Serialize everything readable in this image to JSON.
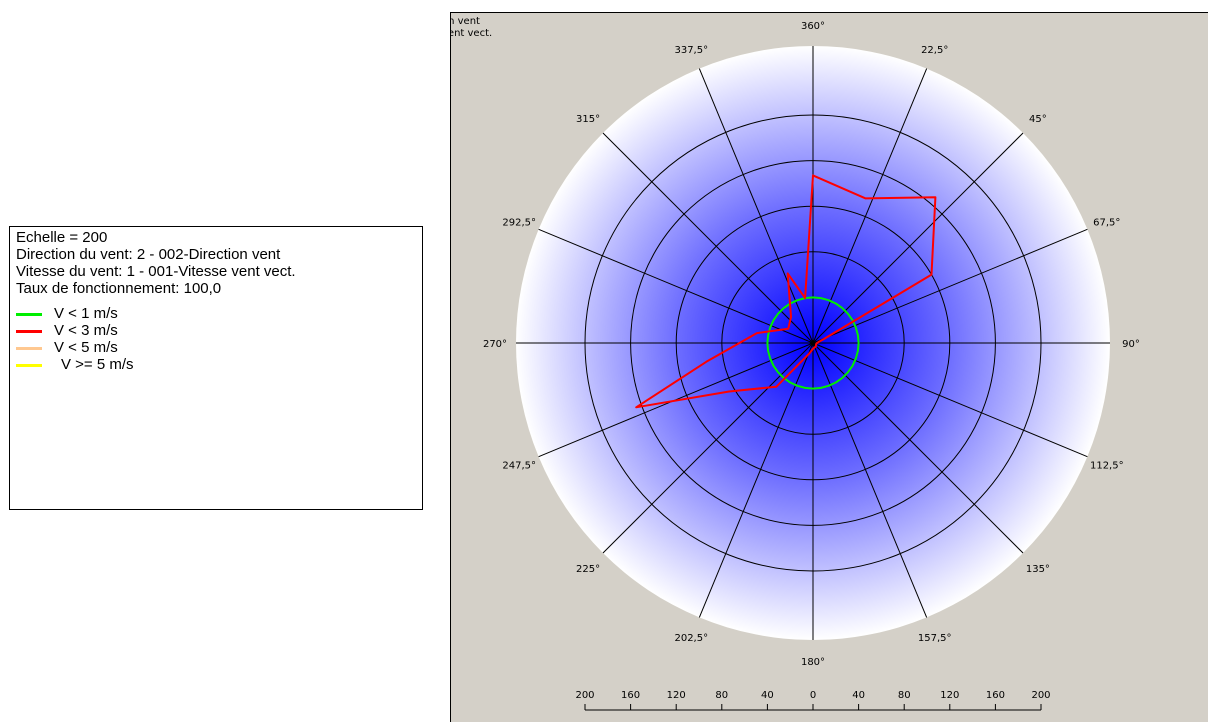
{
  "info_panel": {
    "lines": [
      "Echelle = 200",
      "Direction du vent: 2 - 002-Direction vent",
      "Vitesse du vent: 1 - 001-Vitesse vent vect.",
      "Taux de fonctionnement: 100,0"
    ]
  },
  "top_left_labels": [
    "on vent",
    "vent vect."
  ],
  "colors": {
    "background": "#d4d0c8",
    "rose_center": "#0000ff",
    "rose_edge": "#ffffff",
    "grid": "#000000"
  },
  "chart_data": {
    "type": "polar-line",
    "title": "",
    "radial_scale": 200,
    "ring_values": [
      40,
      80,
      120,
      160,
      200
    ],
    "scale_ticks": [
      "200",
      "160",
      "120",
      "80",
      "40",
      "0",
      "40",
      "80",
      "120",
      "160",
      "200"
    ],
    "direction_labels": [
      "360°",
      "22,5°",
      "45°",
      "67,5°",
      "90°",
      "112,5°",
      "135°",
      "157,5°",
      "180°",
      "202,5°",
      "225°",
      "247,5°",
      "270°",
      "292,5°",
      "315°",
      "337,5°"
    ],
    "legend": [
      {
        "label": "V < 1 m/s",
        "color": "#00ee00"
      },
      {
        "label": "V < 3 m/s",
        "color": "#ff0000"
      },
      {
        "label": "V < 5 m/s",
        "color": "#ffc890"
      },
      {
        "label": "V >= 5 m/s",
        "color": "#ffff00"
      }
    ],
    "series": [
      {
        "name": "V < 1 m/s",
        "color": "#00ee00",
        "directions": [
          0,
          10,
          20,
          30,
          40,
          50,
          60,
          70,
          80,
          90,
          100,
          110,
          120,
          130,
          140,
          150,
          160,
          170,
          180,
          190,
          200,
          210,
          220,
          230,
          240,
          250,
          260,
          270,
          280,
          290,
          300,
          310,
          320,
          330,
          340,
          350
        ],
        "values": [
          40,
          40,
          40,
          40,
          40,
          40,
          40,
          40,
          40,
          40,
          40,
          40,
          40,
          40,
          40,
          40,
          40,
          40,
          40,
          40,
          40,
          40,
          40,
          40,
          40,
          40,
          40,
          40,
          40,
          40,
          40,
          40,
          40,
          40,
          40,
          40
        ]
      },
      {
        "name": "V < 3 m/s",
        "color": "#ff0000",
        "directions": [
          0,
          20,
          40,
          60,
          70,
          80,
          100,
          120,
          140,
          160,
          180,
          200,
          220,
          240,
          250,
          260,
          280,
          300,
          320,
          340,
          350
        ],
        "values": [
          147,
          135,
          167,
          120,
          10,
          5,
          3,
          3,
          4,
          4,
          5,
          10,
          50,
          85,
          165,
          95,
          50,
          25,
          30,
          65,
          40
        ]
      }
    ]
  }
}
